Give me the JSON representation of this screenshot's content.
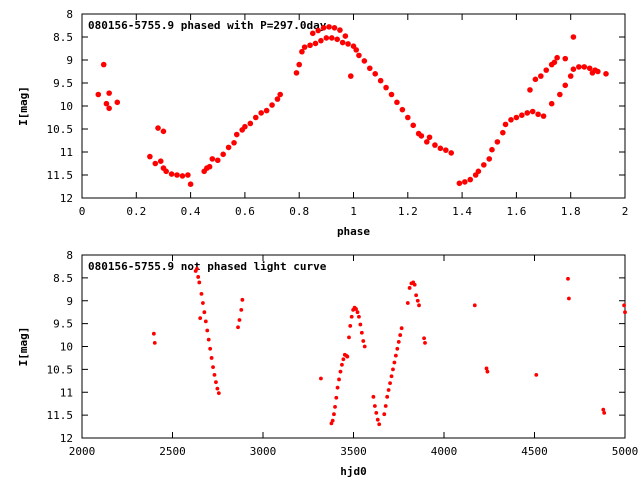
{
  "chart_data": [
    {
      "type": "scatter",
      "title": "080156-5755.9 phased with P=297.0day",
      "xlabel": "phase",
      "ylabel": "I[mag]",
      "xlim": [
        0,
        2
      ],
      "ylim": [
        12,
        8
      ],
      "y_inverted": true,
      "grid": false,
      "marker_color": "#ff0000",
      "xticks": [
        0,
        0.2,
        0.4,
        0.6,
        0.8,
        1,
        1.2,
        1.4,
        1.6,
        1.8,
        2
      ],
      "xtick_labels": [
        "0",
        "0.2",
        "0.4",
        "0.6",
        "0.8",
        "1",
        "1.2",
        "1.4",
        "1.6",
        "1.8",
        "2"
      ],
      "yticks": [
        8,
        8.5,
        9,
        9.5,
        10,
        10.5,
        11,
        11.5,
        12
      ],
      "ytick_labels": [
        "8",
        "8.5",
        "9",
        "9.5",
        "10",
        "10.5",
        "11",
        "11.5",
        "12"
      ],
      "points": [
        [
          0.06,
          9.75
        ],
        [
          0.08,
          9.1
        ],
        [
          0.09,
          9.95
        ],
        [
          0.1,
          10.05
        ],
        [
          0.1,
          9.72
        ],
        [
          0.13,
          9.92
        ],
        [
          0.25,
          11.1
        ],
        [
          0.27,
          11.25
        ],
        [
          0.28,
          10.48
        ],
        [
          0.29,
          11.2
        ],
        [
          0.3,
          10.55
        ],
        [
          0.3,
          11.35
        ],
        [
          0.31,
          11.42
        ],
        [
          0.33,
          11.48
        ],
        [
          0.35,
          11.5
        ],
        [
          0.37,
          11.52
        ],
        [
          0.39,
          11.5
        ],
        [
          0.4,
          11.7
        ],
        [
          0.45,
          11.42
        ],
        [
          0.46,
          11.35
        ],
        [
          0.47,
          11.32
        ],
        [
          0.48,
          11.15
        ],
        [
          0.5,
          11.18
        ],
        [
          0.52,
          11.05
        ],
        [
          0.54,
          10.9
        ],
        [
          0.56,
          10.8
        ],
        [
          0.57,
          10.62
        ],
        [
          0.59,
          10.52
        ],
        [
          0.6,
          10.45
        ],
        [
          0.62,
          10.38
        ],
        [
          0.64,
          10.25
        ],
        [
          0.66,
          10.15
        ],
        [
          0.68,
          10.1
        ],
        [
          0.7,
          9.98
        ],
        [
          0.72,
          9.85
        ],
        [
          0.73,
          9.75
        ],
        [
          0.79,
          9.28
        ],
        [
          0.8,
          9.1
        ],
        [
          0.81,
          8.82
        ],
        [
          0.82,
          8.72
        ],
        [
          0.84,
          8.68
        ],
        [
          0.85,
          8.42
        ],
        [
          0.86,
          8.64
        ],
        [
          0.87,
          8.36
        ],
        [
          0.88,
          8.58
        ],
        [
          0.89,
          8.3
        ],
        [
          0.9,
          8.52
        ],
        [
          0.91,
          8.28
        ],
        [
          0.92,
          8.52
        ],
        [
          0.93,
          8.3
        ],
        [
          0.94,
          8.55
        ],
        [
          0.95,
          8.35
        ],
        [
          0.96,
          8.62
        ],
        [
          0.97,
          8.48
        ],
        [
          0.98,
          8.65
        ],
        [
          0.99,
          9.35
        ],
        [
          1.0,
          8.7
        ],
        [
          1.01,
          8.78
        ],
        [
          1.02,
          8.9
        ],
        [
          1.04,
          9.02
        ],
        [
          1.06,
          9.18
        ],
        [
          1.08,
          9.3
        ],
        [
          1.1,
          9.45
        ],
        [
          1.12,
          9.6
        ],
        [
          1.14,
          9.75
        ],
        [
          1.16,
          9.92
        ],
        [
          1.18,
          10.08
        ],
        [
          1.2,
          10.25
        ],
        [
          1.22,
          10.42
        ],
        [
          1.24,
          10.6
        ],
        [
          1.25,
          10.65
        ],
        [
          1.27,
          10.78
        ],
        [
          1.28,
          10.68
        ],
        [
          1.3,
          10.85
        ],
        [
          1.32,
          10.92
        ],
        [
          1.34,
          10.96
        ],
        [
          1.36,
          11.02
        ],
        [
          1.39,
          11.68
        ],
        [
          1.41,
          11.65
        ],
        [
          1.43,
          11.6
        ],
        [
          1.45,
          11.5
        ],
        [
          1.46,
          11.42
        ],
        [
          1.48,
          11.28
        ],
        [
          1.5,
          11.15
        ],
        [
          1.51,
          10.95
        ],
        [
          1.53,
          10.78
        ],
        [
          1.55,
          10.58
        ],
        [
          1.56,
          10.4
        ],
        [
          1.58,
          10.3
        ],
        [
          1.6,
          10.25
        ],
        [
          1.62,
          10.2
        ],
        [
          1.64,
          10.15
        ],
        [
          1.66,
          10.12
        ],
        [
          1.68,
          10.18
        ],
        [
          1.7,
          10.22
        ],
        [
          1.65,
          9.65
        ],
        [
          1.67,
          9.42
        ],
        [
          1.69,
          9.35
        ],
        [
          1.71,
          9.22
        ],
        [
          1.73,
          9.1
        ],
        [
          1.74,
          9.05
        ],
        [
          1.75,
          8.95
        ],
        [
          1.73,
          9.95
        ],
        [
          1.76,
          9.75
        ],
        [
          1.78,
          9.55
        ],
        [
          1.8,
          9.35
        ],
        [
          1.81,
          9.2
        ],
        [
          1.81,
          8.5
        ],
        [
          1.83,
          9.15
        ],
        [
          1.85,
          9.15
        ],
        [
          1.87,
          9.18
        ],
        [
          1.89,
          9.22
        ],
        [
          1.9,
          9.25
        ],
        [
          1.78,
          8.97
        ],
        [
          1.88,
          9.28
        ],
        [
          1.93,
          9.3
        ]
      ]
    },
    {
      "type": "scatter",
      "title": "080156-5755.9 not phased light curve",
      "xlabel": "hjd0",
      "ylabel": "I[mag]",
      "xlim": [
        2000,
        5000
      ],
      "ylim": [
        12,
        8
      ],
      "y_inverted": true,
      "grid": false,
      "marker_color": "#ff0000",
      "xticks": [
        2000,
        2500,
        3000,
        3500,
        4000,
        4500,
        5000
      ],
      "xtick_labels": [
        "2000",
        "2500",
        "3000",
        "3500",
        "4000",
        "4500",
        "5000"
      ],
      "yticks": [
        8,
        8.5,
        9,
        9.5,
        10,
        10.5,
        11,
        11.5,
        12
      ],
      "ytick_labels": [
        "8",
        "8.5",
        "9",
        "9.5",
        "10",
        "10.5",
        "11",
        "11.5",
        "12"
      ],
      "points": [
        [
          2397,
          9.72
        ],
        [
          2402,
          9.92
        ],
        [
          2628,
          8.35
        ],
        [
          2635,
          8.3
        ],
        [
          2642,
          8.48
        ],
        [
          2648,
          8.6
        ],
        [
          2653,
          9.38
        ],
        [
          2660,
          8.85
        ],
        [
          2668,
          9.05
        ],
        [
          2676,
          9.25
        ],
        [
          2684,
          9.45
        ],
        [
          2692,
          9.65
        ],
        [
          2700,
          9.85
        ],
        [
          2708,
          10.05
        ],
        [
          2716,
          10.25
        ],
        [
          2724,
          10.45
        ],
        [
          2732,
          10.62
        ],
        [
          2740,
          10.78
        ],
        [
          2748,
          10.92
        ],
        [
          2756,
          11.02
        ],
        [
          2862,
          9.58
        ],
        [
          2870,
          9.42
        ],
        [
          2880,
          9.2
        ],
        [
          2886,
          8.98
        ],
        [
          3320,
          10.7
        ],
        [
          3378,
          11.68
        ],
        [
          3385,
          11.62
        ],
        [
          3392,
          11.48
        ],
        [
          3398,
          11.32
        ],
        [
          3405,
          11.12
        ],
        [
          3412,
          10.9
        ],
        [
          3420,
          10.72
        ],
        [
          3428,
          10.55
        ],
        [
          3436,
          10.4
        ],
        [
          3444,
          10.28
        ],
        [
          3452,
          10.18
        ],
        [
          3460,
          10.2
        ],
        [
          3466,
          10.22
        ],
        [
          3475,
          9.8
        ],
        [
          3482,
          9.55
        ],
        [
          3490,
          9.35
        ],
        [
          3498,
          9.2
        ],
        [
          3506,
          9.15
        ],
        [
          3514,
          9.18
        ],
        [
          3522,
          9.25
        ],
        [
          3530,
          9.35
        ],
        [
          3538,
          9.52
        ],
        [
          3546,
          9.7
        ],
        [
          3554,
          9.88
        ],
        [
          3562,
          10.0
        ],
        [
          3610,
          11.1
        ],
        [
          3618,
          11.3
        ],
        [
          3626,
          11.45
        ],
        [
          3634,
          11.6
        ],
        [
          3642,
          11.7
        ],
        [
          3670,
          11.48
        ],
        [
          3678,
          11.3
        ],
        [
          3686,
          11.1
        ],
        [
          3694,
          10.95
        ],
        [
          3702,
          10.8
        ],
        [
          3710,
          10.65
        ],
        [
          3718,
          10.5
        ],
        [
          3726,
          10.35
        ],
        [
          3734,
          10.2
        ],
        [
          3742,
          10.05
        ],
        [
          3750,
          9.9
        ],
        [
          3758,
          9.75
        ],
        [
          3766,
          9.6
        ],
        [
          3800,
          9.05
        ],
        [
          3810,
          8.72
        ],
        [
          3820,
          8.62
        ],
        [
          3830,
          8.6
        ],
        [
          3838,
          8.65
        ],
        [
          3846,
          8.88
        ],
        [
          3855,
          9.0
        ],
        [
          3862,
          9.1
        ],
        [
          3890,
          9.82
        ],
        [
          3895,
          9.92
        ],
        [
          4170,
          9.1
        ],
        [
          4235,
          10.48
        ],
        [
          4240,
          10.55
        ],
        [
          4510,
          10.62
        ],
        [
          4685,
          8.52
        ],
        [
          4690,
          8.95
        ],
        [
          4880,
          11.38
        ],
        [
          4885,
          11.45
        ],
        [
          4995,
          9.1
        ],
        [
          5000,
          9.25
        ]
      ]
    }
  ]
}
